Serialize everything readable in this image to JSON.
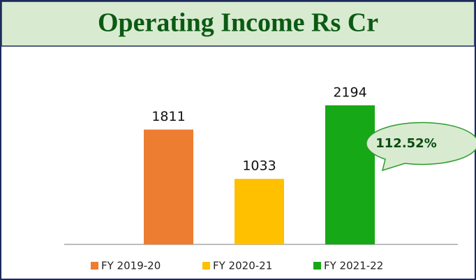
{
  "chart_data": {
    "type": "bar",
    "title": "Operating Income  Rs Cr",
    "categories": [
      null
    ],
    "series": [
      {
        "name": "FY 2019-20",
        "color": "#ed7d31",
        "values": [
          1811
        ]
      },
      {
        "name": "FY 2020-21",
        "color": "#ffc000",
        "values": [
          1033
        ]
      },
      {
        "name": "FY 2021-22",
        "color": "#16a816",
        "values": [
          2194
        ]
      }
    ],
    "ylim": [
      0,
      2500
    ],
    "annotation": "112.52%",
    "legend": "bottom"
  }
}
